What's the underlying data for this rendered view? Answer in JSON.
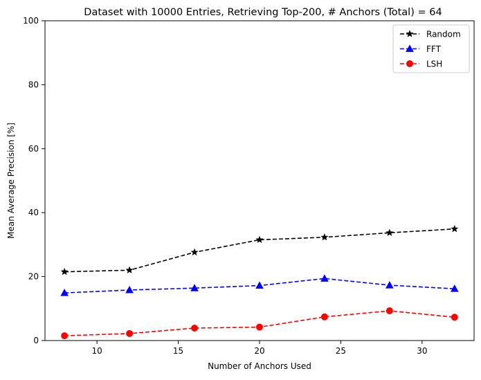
{
  "chart_data": {
    "type": "line",
    "title": "Dataset with 10000 Entries, Retrieving Top-200, # Anchors (Total) = 64",
    "xlabel": "Number of Anchors Used",
    "ylabel": "Mean Average Precision [%]",
    "x": [
      8,
      12,
      16,
      20,
      24,
      28,
      32
    ],
    "xlim": [
      6.8,
      33.2
    ],
    "ylim": [
      0,
      100
    ],
    "xticks": [
      10,
      15,
      20,
      25,
      30
    ],
    "yticks": [
      0,
      20,
      40,
      60,
      80,
      100
    ],
    "grid": false,
    "legend_position": "top-right",
    "series": [
      {
        "name": "Random",
        "color": "#000000",
        "marker": "star",
        "linestyle": "dashed",
        "values": [
          21.5,
          22.0,
          27.6,
          31.5,
          32.3,
          33.7,
          34.9
        ]
      },
      {
        "name": "FFT",
        "color": "#0000ff",
        "marker": "triangle-up",
        "linestyle": "dashed",
        "values": [
          14.9,
          15.8,
          16.4,
          17.2,
          19.4,
          17.3,
          16.2
        ]
      },
      {
        "name": "LSH",
        "color": "#ff0000",
        "marker": "circle",
        "linestyle": "dashed",
        "values": [
          1.5,
          2.2,
          3.9,
          4.2,
          7.4,
          9.3,
          7.3
        ]
      }
    ]
  }
}
